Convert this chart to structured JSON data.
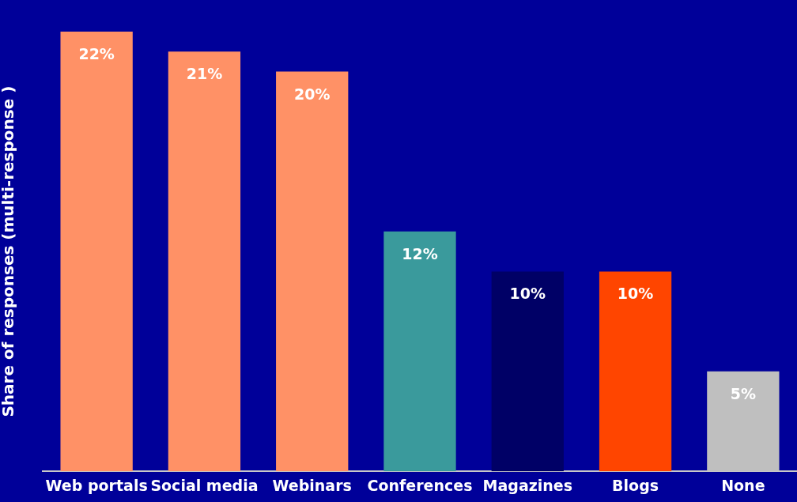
{
  "chart_data": {
    "type": "bar",
    "ylabel": "Share of responses (multi-response )",
    "categories": [
      "Web portals",
      "Social media",
      "Webinars",
      "Conferences",
      "Magazines",
      "Blogs",
      "None"
    ],
    "values": [
      22,
      21,
      20,
      12,
      10,
      10,
      5
    ],
    "colors": [
      "#ff9166",
      "#ff9166",
      "#ff9166",
      "#3a9a9c",
      "#000066",
      "#ff4500",
      "#bfbfbf"
    ],
    "value_labels": [
      "22%",
      "21%",
      "20%",
      "12%",
      "10%",
      "10%",
      "5%"
    ],
    "tick_labels": "x",
    "grid": false,
    "legend": false
  }
}
